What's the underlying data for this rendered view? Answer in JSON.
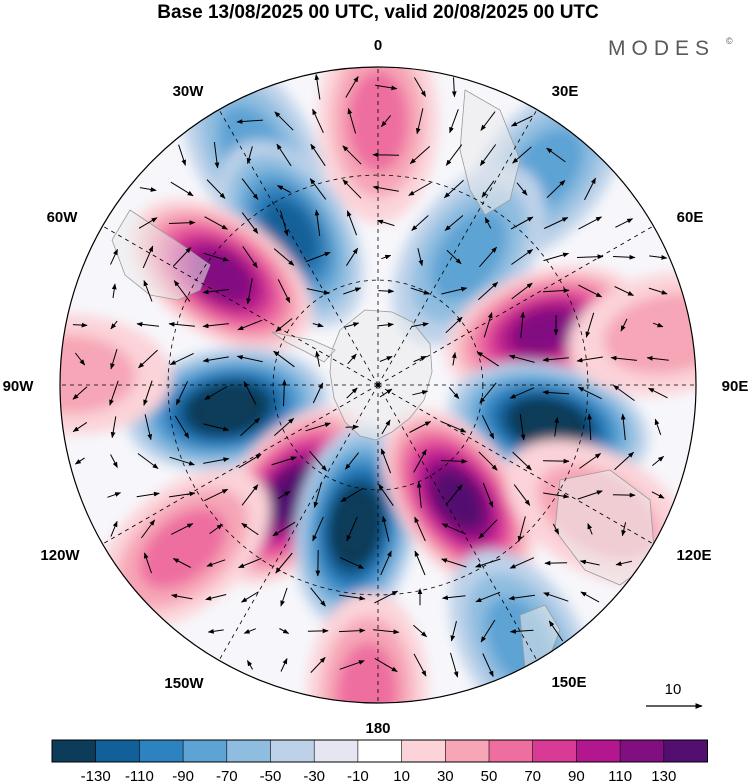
{
  "title": "Base 13/08/2025 00 UTC, valid 20/08/2025 00 UTC",
  "brand": "MODES",
  "brand_mark": "©",
  "longitude_labels": {
    "top": "0",
    "top_right": "30E",
    "upper_right": "60E",
    "right": "90E",
    "lower_right": "120E",
    "bottom_right": "150E",
    "bottom": "180",
    "bottom_left": "150W",
    "lower_left": "120W",
    "left": "90W",
    "upper_left": "60W",
    "top_left": "30W"
  },
  "vector_reference": {
    "label": "10"
  },
  "colorbar": {
    "ticks": [
      "-130",
      "-110",
      "-90",
      "-70",
      "-50",
      "-30",
      "-10",
      "10",
      "30",
      "50",
      "70",
      "90",
      "110",
      "130"
    ],
    "colors": [
      "#0d3c5a",
      "#12609a",
      "#2d82c0",
      "#5da3d4",
      "#8fbde0",
      "#bdd2e9",
      "#e6e6f2",
      "#ffffff",
      "#fbd3d8",
      "#f6a6b6",
      "#ee6ea0",
      "#d93a96",
      "#b4168f",
      "#820f82",
      "#520f70"
    ]
  },
  "anomaly_centers": [
    {
      "name": "north-pink",
      "lon_deg": 0,
      "lat_frac": 0.83,
      "value": 55
    },
    {
      "name": "nnw-blue",
      "lon_deg": -28,
      "lat_frac": 0.83,
      "value": -55
    },
    {
      "name": "ne-blue",
      "lon_deg": 38,
      "lat_frac": 0.85,
      "value": -50
    },
    {
      "name": "nw-blue-inner",
      "lon_deg": -30,
      "lat_frac": 0.55,
      "value": -85
    },
    {
      "name": "wnw-magenta",
      "lon_deg": -55,
      "lat_frac": 0.6,
      "value": 105
    },
    {
      "name": "ne-blue-inner",
      "lon_deg": 35,
      "lat_frac": 0.5,
      "value": -55
    },
    {
      "name": "ene-magenta",
      "lon_deg": 72,
      "lat_frac": 0.55,
      "value": 105
    },
    {
      "name": "west-blue",
      "lon_deg": -99,
      "lat_frac": 0.48,
      "value": -125
    },
    {
      "name": "east-blue",
      "lon_deg": 103,
      "lat_frac": 0.55,
      "value": -125
    },
    {
      "name": "sw-purple",
      "lon_deg": -142,
      "lat_frac": 0.44,
      "value": 130
    },
    {
      "name": "south-blue",
      "lon_deg": -171,
      "lat_frac": 0.45,
      "value": -125
    },
    {
      "name": "se-purple",
      "lon_deg": 145,
      "lat_frac": 0.44,
      "value": 130
    },
    {
      "name": "south-pink",
      "lon_deg": -178,
      "lat_frac": 0.97,
      "value": 50
    },
    {
      "name": "sse-blue",
      "lon_deg": 151,
      "lat_frac": 0.93,
      "value": -50
    },
    {
      "name": "far-west-pink",
      "lon_deg": -88,
      "lat_frac": 0.97,
      "value": 30
    },
    {
      "name": "far-east-pink",
      "lon_deg": 80,
      "lat_frac": 0.93,
      "value": 30
    },
    {
      "name": "ssw-pink",
      "lon_deg": -130,
      "lat_frac": 0.8,
      "value": 40
    },
    {
      "name": "se-pink-outer",
      "lon_deg": 120,
      "lat_frac": 0.8,
      "value": 35
    }
  ]
}
